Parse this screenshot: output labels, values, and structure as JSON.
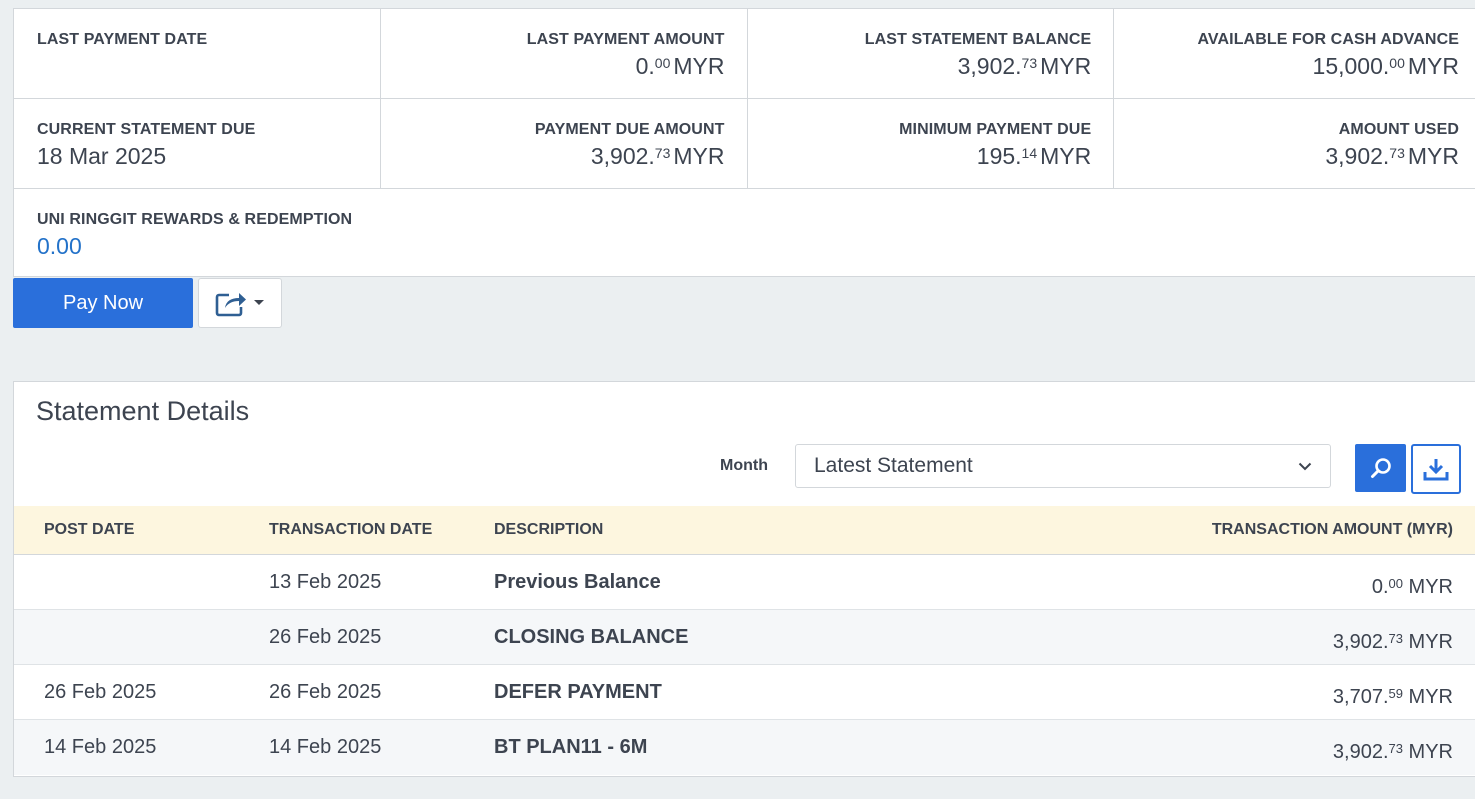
{
  "summary": {
    "last_payment_date": {
      "label": "LAST PAYMENT DATE",
      "value": ""
    },
    "last_payment_amount": {
      "label": "LAST PAYMENT AMOUNT",
      "int": "0.",
      "dec": "00",
      "cur": "MYR"
    },
    "last_statement_balance": {
      "label": "LAST STATEMENT BALANCE",
      "int": "3,902.",
      "dec": "73",
      "cur": "MYR"
    },
    "available_cash_advance": {
      "label": "AVAILABLE FOR CASH ADVANCE",
      "int": "15,000.",
      "dec": "00",
      "cur": "MYR"
    },
    "current_statement_due": {
      "label": "CURRENT STATEMENT DUE",
      "value": "18 Mar 2025"
    },
    "payment_due_amount": {
      "label": "PAYMENT DUE AMOUNT",
      "int": "3,902.",
      "dec": "73",
      "cur": "MYR"
    },
    "minimum_payment_due": {
      "label": "MINIMUM PAYMENT DUE",
      "int": "195.",
      "dec": "14",
      "cur": "MYR"
    },
    "amount_used": {
      "label": "AMOUNT USED",
      "int": "3,902.",
      "dec": "73",
      "cur": "MYR"
    },
    "rewards": {
      "label": "UNI RINGGIT REWARDS & REDEMPTION",
      "value": "0.00"
    }
  },
  "actions": {
    "pay_now": "Pay Now",
    "share_icon": "share-icon"
  },
  "details": {
    "title": "Statement Details",
    "month_label": "Month",
    "month_selected": "Latest Statement",
    "columns": [
      "POST DATE",
      "TRANSACTION DATE",
      "DESCRIPTION",
      "TRANSACTION AMOUNT (MYR)"
    ],
    "rows": [
      {
        "post": "",
        "trans": "13 Feb 2025",
        "desc": "Previous Balance",
        "int": "0.",
        "dec": "00",
        "cur": "MYR"
      },
      {
        "post": "",
        "trans": "26 Feb 2025",
        "desc": "CLOSING BALANCE",
        "int": "3,902.",
        "dec": "73",
        "cur": "MYR"
      },
      {
        "post": "26 Feb 2025",
        "trans": "26 Feb 2025",
        "desc": "DEFER PAYMENT",
        "int": "3,707.",
        "dec": "59",
        "cur": "MYR"
      },
      {
        "post": "14 Feb 2025",
        "trans": "14 Feb 2025",
        "desc": "BT PLAN11 - 6M",
        "int": "3,902.",
        "dec": "73",
        "cur": "MYR"
      }
    ]
  },
  "colors": {
    "primary": "#2a6fdb",
    "link": "#2372c9",
    "header_bg": "#fdf6df",
    "page_bg": "#ebeff1"
  }
}
